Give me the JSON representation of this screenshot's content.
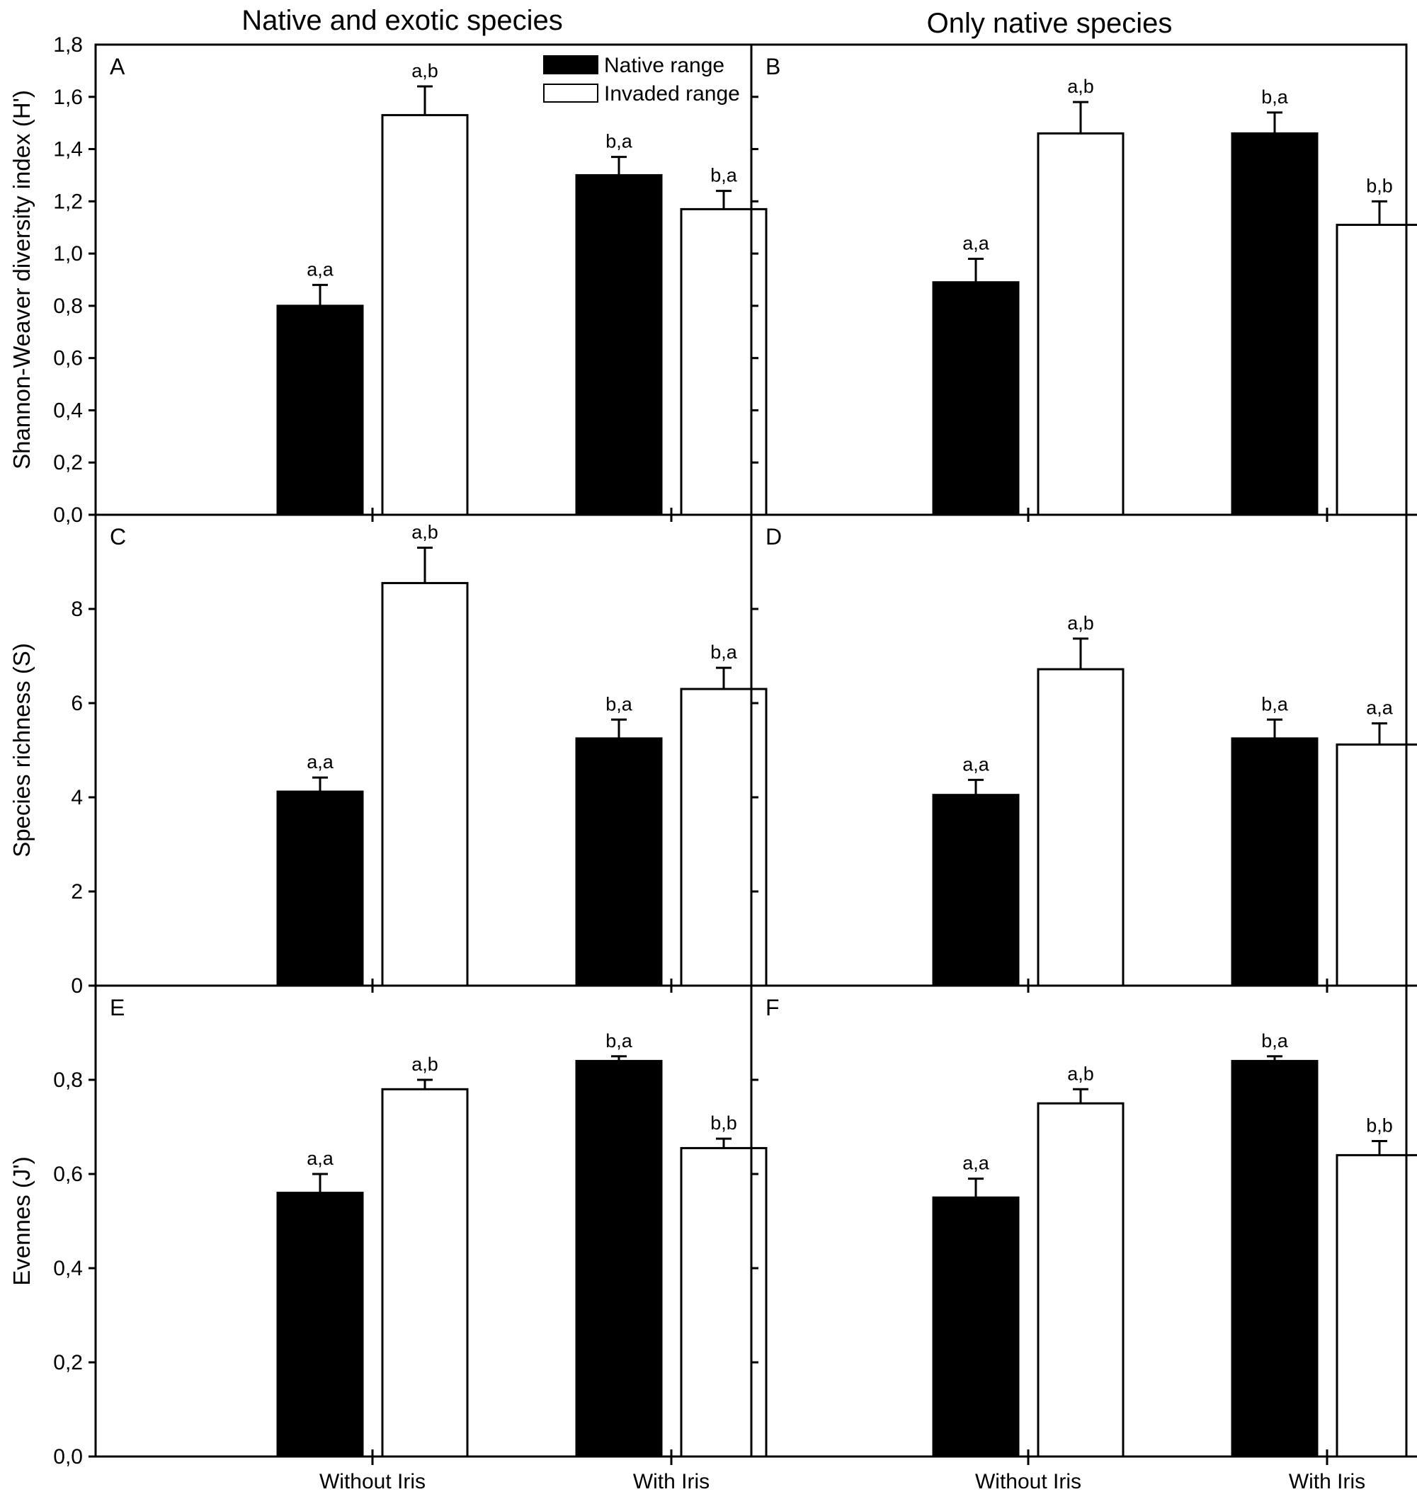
{
  "figure": {
    "col_titles": [
      "Native and exotic species",
      "Only native species"
    ]
  },
  "legend": {
    "items": [
      {
        "label": "Native range",
        "fill": "#000000"
      },
      {
        "label": "Invaded range",
        "fill": "#ffffff"
      }
    ]
  },
  "chart_data": [
    {
      "panel": "A",
      "type": "bar",
      "ylabel": "Shannon-Weaver diversity index (H')",
      "ylim": [
        0,
        1.8
      ],
      "yticks": [
        0,
        0.2,
        0.4,
        0.6,
        0.8,
        1.0,
        1.2,
        1.4,
        1.6,
        1.8
      ],
      "ytick_labels": [
        "0,0",
        "0,2",
        "0,4",
        "0,6",
        "0,8",
        "1,0",
        "1,2",
        "1,4",
        "1,6",
        "1,8"
      ],
      "categories": [
        "Without Iris",
        "With Iris"
      ],
      "series": [
        {
          "name": "Native range",
          "values": [
            0.8,
            1.3
          ],
          "errors": [
            0.08,
            0.07
          ],
          "labels": [
            "a,a",
            "b,a"
          ]
        },
        {
          "name": "Invaded range",
          "values": [
            1.53,
            1.17
          ],
          "errors": [
            0.11,
            0.07
          ],
          "labels": [
            "a,b",
            "b,a"
          ]
        }
      ]
    },
    {
      "panel": "B",
      "type": "bar",
      "ylabel": "",
      "ylim": [
        0,
        1.8
      ],
      "yticks": [
        0,
        0.2,
        0.4,
        0.6,
        0.8,
        1.0,
        1.2,
        1.4,
        1.6,
        1.8
      ],
      "ytick_labels": [],
      "categories": [
        "Without Iris",
        "With Iris"
      ],
      "series": [
        {
          "name": "Native range",
          "values": [
            0.89,
            1.46
          ],
          "errors": [
            0.09,
            0.08
          ],
          "labels": [
            "a,a",
            "b,a"
          ]
        },
        {
          "name": "Invaded range",
          "values": [
            1.46,
            1.11
          ],
          "errors": [
            0.12,
            0.09
          ],
          "labels": [
            "a,b",
            "b,b"
          ]
        }
      ]
    },
    {
      "panel": "C",
      "type": "bar",
      "ylabel": "Species richness (S)",
      "ylim": [
        0,
        10
      ],
      "yticks": [
        0,
        2,
        4,
        6,
        8,
        10
      ],
      "ytick_labels": [
        "0",
        "2",
        "4",
        "6",
        "8",
        ""
      ],
      "categories": [
        "Without Iris",
        "With Iris"
      ],
      "series": [
        {
          "name": "Native range",
          "values": [
            4.12,
            5.25
          ],
          "errors": [
            0.3,
            0.4
          ],
          "labels": [
            "a,a",
            "b,a"
          ]
        },
        {
          "name": "Invaded range",
          "values": [
            8.55,
            6.3
          ],
          "errors": [
            0.75,
            0.45
          ],
          "labels": [
            "a,b",
            "b,a"
          ]
        }
      ]
    },
    {
      "panel": "D",
      "type": "bar",
      "ylabel": "",
      "ylim": [
        0,
        10
      ],
      "yticks": [
        0,
        2,
        4,
        6,
        8,
        10
      ],
      "ytick_labels": [],
      "categories": [
        "Without Iris",
        "With Iris"
      ],
      "series": [
        {
          "name": "Native range",
          "values": [
            4.05,
            5.25
          ],
          "errors": [
            0.32,
            0.4
          ],
          "labels": [
            "a,a",
            "b,a"
          ]
        },
        {
          "name": "Invaded range",
          "values": [
            6.72,
            5.12
          ],
          "errors": [
            0.65,
            0.45
          ],
          "labels": [
            "a,b",
            "a,a"
          ]
        }
      ]
    },
    {
      "panel": "E",
      "type": "bar",
      "ylabel": "Evennes (J')",
      "ylim": [
        0,
        1.0
      ],
      "yticks": [
        0,
        0.2,
        0.4,
        0.6,
        0.8,
        1.0
      ],
      "ytick_labels": [
        "0,0",
        "0,2",
        "0,4",
        "0,6",
        "0,8",
        ""
      ],
      "categories": [
        "Without Iris",
        "With Iris"
      ],
      "series": [
        {
          "name": "Native range",
          "values": [
            0.56,
            0.84
          ],
          "errors": [
            0.04,
            0.01
          ],
          "labels": [
            "a,a",
            "b,a"
          ]
        },
        {
          "name": "Invaded range",
          "values": [
            0.78,
            0.655
          ],
          "errors": [
            0.02,
            0.02
          ],
          "labels": [
            "a,b",
            "b,b"
          ]
        }
      ]
    },
    {
      "panel": "F",
      "type": "bar",
      "ylabel": "",
      "ylim": [
        0,
        1.0
      ],
      "yticks": [
        0,
        0.2,
        0.4,
        0.6,
        0.8,
        1.0
      ],
      "ytick_labels": [],
      "categories": [
        "Without Iris",
        "With Iris"
      ],
      "series": [
        {
          "name": "Native range",
          "values": [
            0.55,
            0.84
          ],
          "errors": [
            0.04,
            0.01
          ],
          "labels": [
            "a,a",
            "b,a"
          ]
        },
        {
          "name": "Invaded range",
          "values": [
            0.75,
            0.64
          ],
          "errors": [
            0.03,
            0.03
          ],
          "labels": [
            "a,b",
            "b,b"
          ]
        }
      ]
    }
  ]
}
